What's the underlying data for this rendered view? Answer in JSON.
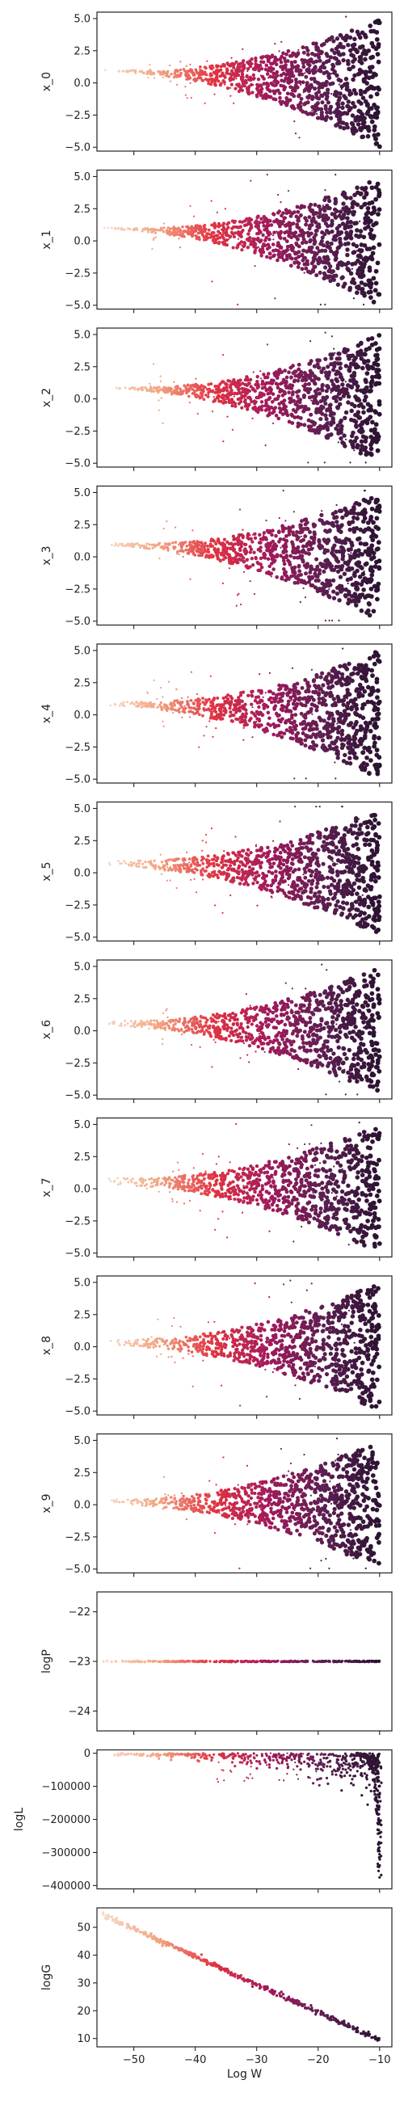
{
  "chart_data": {
    "type": "scatter",
    "layout": "vertical stack of 13 subplots sharing x-axis",
    "xlabel": "Log W",
    "x_range": [
      -56,
      -8
    ],
    "x_ticks": [
      -50,
      -40,
      -30,
      -20,
      -10
    ],
    "x_tick_labels": [
      "−50",
      "−40",
      "−30",
      "−20",
      "−10"
    ],
    "color_note": "points colored by density/order: light peach at left (x ≈ -55), through red/magenta, to near-black purple at right (x ≈ -10)",
    "colors": [
      "#f6dcc8",
      "#f3a481",
      "#e13342",
      "#a11a5b",
      "#5b1e51",
      "#2a1331"
    ],
    "grid": false,
    "legend": "none",
    "panels": [
      {
        "ylabel": "x_0",
        "kind": "funnel",
        "ylim": [
          -5.3,
          5.5
        ],
        "y_ticks": [
          5.0,
          2.5,
          0.0,
          -2.5,
          -5.0
        ],
        "y_tick_labels": [
          "5.0",
          "2.5",
          "0.0",
          "−2.5",
          "−5.0"
        ],
        "center": 1.0,
        "width_left": 0.05,
        "width_right": 5.0
      },
      {
        "ylabel": "x_1",
        "kind": "funnel",
        "ylim": [
          -5.3,
          5.5
        ],
        "y_ticks": [
          5.0,
          2.5,
          0.0,
          -2.5,
          -5.0
        ],
        "y_tick_labels": [
          "5.0",
          "2.5",
          "0.0",
          "−2.5",
          "−5.0"
        ],
        "center": 1.0,
        "width_left": 0.05,
        "width_right": 5.0
      },
      {
        "ylabel": "x_2",
        "kind": "funnel",
        "ylim": [
          -5.3,
          5.5
        ],
        "y_ticks": [
          5.0,
          2.5,
          0.0,
          -2.5,
          -5.0
        ],
        "y_tick_labels": [
          "5.0",
          "2.5",
          "0.0",
          "−2.5",
          "−5.0"
        ],
        "center": 0.9,
        "width_left": 0.05,
        "width_right": 5.0
      },
      {
        "ylabel": "x_3",
        "kind": "funnel",
        "ylim": [
          -5.3,
          5.5
        ],
        "y_ticks": [
          5.0,
          2.5,
          0.0,
          -2.5,
          -5.0
        ],
        "y_tick_labels": [
          "5.0",
          "2.5",
          "0.0",
          "−2.5",
          "−5.0"
        ],
        "center": 1.0,
        "width_left": 0.1,
        "width_right": 5.0
      },
      {
        "ylabel": "x_4",
        "kind": "funnel",
        "ylim": [
          -5.3,
          5.5
        ],
        "y_ticks": [
          5.0,
          2.5,
          0.0,
          -2.5,
          -5.0
        ],
        "y_tick_labels": [
          "5.0",
          "2.5",
          "0.0",
          "−2.5",
          "−5.0"
        ],
        "center": 0.9,
        "width_left": 0.15,
        "width_right": 5.0
      },
      {
        "ylabel": "x_5",
        "kind": "funnel",
        "ylim": [
          -5.3,
          5.5
        ],
        "y_ticks": [
          5.0,
          2.5,
          0.0,
          -2.5,
          -5.0
        ],
        "y_tick_labels": [
          "5.0",
          "2.5",
          "0.0",
          "−2.5",
          "−5.0"
        ],
        "center": 0.8,
        "width_left": 0.2,
        "width_right": 5.0
      },
      {
        "ylabel": "x_6",
        "kind": "funnel",
        "ylim": [
          -5.3,
          5.5
        ],
        "y_ticks": [
          5.0,
          2.5,
          0.0,
          -2.5,
          -5.0
        ],
        "y_tick_labels": [
          "5.0",
          "2.5",
          "0.0",
          "−2.5",
          "−5.0"
        ],
        "center": 0.6,
        "width_left": 0.2,
        "width_right": 5.0
      },
      {
        "ylabel": "x_7",
        "kind": "funnel",
        "ylim": [
          -5.3,
          5.5
        ],
        "y_ticks": [
          5.0,
          2.5,
          0.0,
          -2.5,
          -5.0
        ],
        "y_tick_labels": [
          "5.0",
          "2.5",
          "0.0",
          "−2.5",
          "−5.0"
        ],
        "center": 0.6,
        "width_left": 0.25,
        "width_right": 5.0
      },
      {
        "ylabel": "x_8",
        "kind": "funnel",
        "ylim": [
          -5.3,
          5.5
        ],
        "y_ticks": [
          5.0,
          2.5,
          0.0,
          -2.5,
          -5.0
        ],
        "y_tick_labels": [
          "5.0",
          "2.5",
          "0.0",
          "−2.5",
          "−5.0"
        ],
        "center": 0.3,
        "width_left": 0.25,
        "width_right": 5.0
      },
      {
        "ylabel": "x_9",
        "kind": "funnel",
        "ylim": [
          -5.3,
          5.5
        ],
        "y_ticks": [
          5.0,
          2.5,
          0.0,
          -2.5,
          -5.0
        ],
        "y_tick_labels": [
          "5.0",
          "2.5",
          "0.0",
          "−2.5",
          "−5.0"
        ],
        "center": 0.2,
        "width_left": 0.2,
        "width_right": 5.0
      },
      {
        "ylabel": "logP",
        "kind": "constant",
        "ylim": [
          -24.4,
          -21.6
        ],
        "y_ticks": [
          -22,
          -23,
          -24
        ],
        "y_tick_labels": [
          "−22",
          "−23",
          "−24"
        ],
        "value": -23.0
      },
      {
        "ylabel": "logL",
        "kind": "drop",
        "ylim": [
          -410000,
          10000
        ],
        "y_ticks": [
          0,
          -100000,
          -200000,
          -300000,
          -400000
        ],
        "y_tick_labels": [
          "0",
          "−100000",
          "−200000",
          "−300000",
          "−400000"
        ],
        "min_value": -400000
      },
      {
        "ylabel": "logG",
        "kind": "linear",
        "ylim": [
          7,
          57
        ],
        "y_ticks": [
          50,
          40,
          30,
          20,
          10
        ],
        "y_tick_labels": [
          "50",
          "40",
          "30",
          "20",
          "10"
        ],
        "x_start": -55,
        "y_start": 54.5,
        "x_end": -10,
        "y_end": 9.5
      }
    ]
  }
}
